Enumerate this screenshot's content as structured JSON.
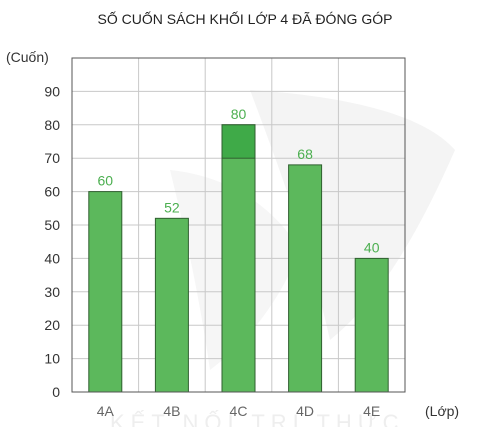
{
  "chart_data": {
    "type": "bar",
    "title": "SỐ CUỐN SÁCH KHỐI LỚP 4 ĐÃ ĐÓNG GÓP",
    "ylabel": "(Cuốn)",
    "xlabel": "(Lớp)",
    "categories": [
      "4A",
      "4B",
      "4C",
      "4D",
      "4E"
    ],
    "values": [
      60,
      52,
      80,
      68,
      40
    ],
    "value_labels": [
      "60",
      "52",
      "80",
      "68",
      "40"
    ],
    "y_ticks": [
      0,
      10,
      20,
      30,
      40,
      50,
      60,
      70,
      80,
      90
    ],
    "ylim": [
      0,
      100
    ],
    "grid": true,
    "highlight_index": 2,
    "colors": {
      "bar": "#5cb85c",
      "bar_highlight": "#3faa48",
      "bar_border": "#2f5f2f",
      "value_label": "#4caf50",
      "grid": "#c8c8c8",
      "axis": "#333333",
      "watermark": "#f1f1f1"
    }
  },
  "watermark_text": "KẾT NỐI TRI THỨC"
}
